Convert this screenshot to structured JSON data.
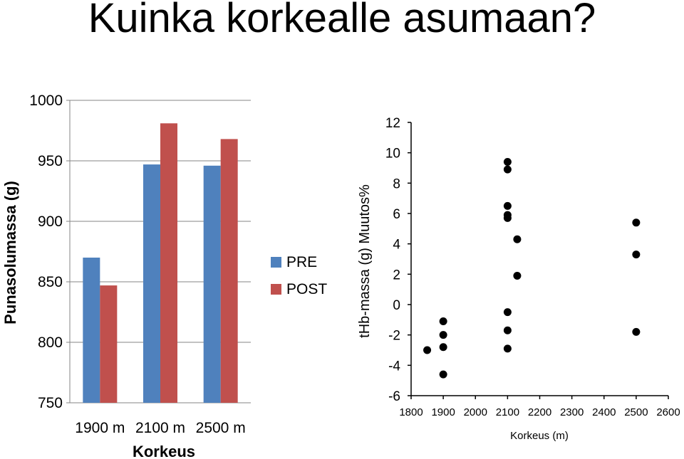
{
  "page": {
    "title": "Kuinka korkealle asumaan?"
  },
  "chart_data": [
    {
      "type": "bar",
      "categories": [
        "1900 m",
        "2100 m",
        "2500 m"
      ],
      "series": [
        {
          "name": "PRE",
          "values": [
            870,
            947,
            946
          ]
        },
        {
          "name": "POST",
          "values": [
            847,
            981,
            968
          ]
        }
      ],
      "xlabel": "Korkeus",
      "ylabel": "Punasolumassa (g)",
      "ylim": [
        750,
        1000
      ],
      "yticks": [
        750,
        800,
        850,
        900,
        950,
        1000
      ],
      "grid": true,
      "legend": "right",
      "colors": [
        "#4f81bd",
        "#c0504d"
      ]
    },
    {
      "type": "scatter",
      "x": [
        1850,
        1900,
        1900,
        1900,
        1900,
        2100,
        2100,
        2100,
        2100,
        2100,
        2100,
        2100,
        2100,
        2130,
        2130,
        2500,
        2500,
        2500
      ],
      "y": [
        -3.0,
        -1.1,
        -2.0,
        -2.8,
        -4.6,
        9.4,
        8.9,
        6.5,
        5.9,
        5.7,
        -0.5,
        -1.7,
        -2.9,
        4.3,
        1.9,
        5.4,
        3.3,
        -1.8
      ],
      "xlabel": "Korkeus (m)",
      "ylabel": "tHb-massa (g) Muutos%",
      "xlim": [
        1800,
        2600
      ],
      "ylim": [
        -6,
        12
      ],
      "xticks": [
        1800,
        1900,
        2000,
        2100,
        2200,
        2300,
        2400,
        2500,
        2600
      ],
      "yticks": [
        -6,
        -4,
        -2,
        0,
        2,
        4,
        6,
        8,
        10,
        12
      ],
      "grid": false,
      "color": "#000000"
    }
  ]
}
